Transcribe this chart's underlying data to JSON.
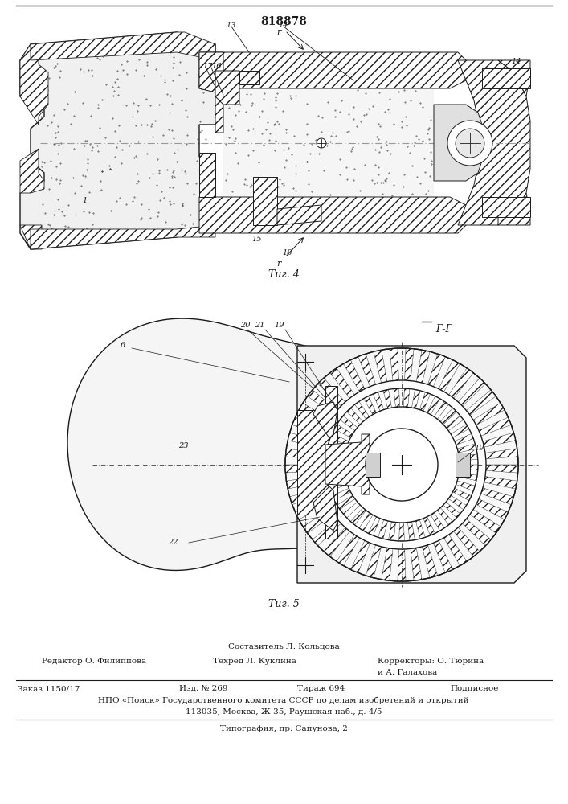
{
  "patent_number": "818878",
  "fig4_label": "Τиг. 4",
  "fig5_label": "Τиг. 5",
  "section_label": "Г-Г",
  "bg_color": "#ffffff",
  "line_color": "#1a1a1a",
  "gray_hatch": "#888888",
  "light_gray": "#cccccc",
  "mid_gray": "#aaaaaa",
  "dark_gray": "#777777",
  "footer_compiler": "Составитель Л. Кольцова",
  "footer_line1_left": "Редактор О. Филиппова",
  "footer_line1_center": "Техред Л. Куклина",
  "footer_line1_right": "Корректоры: О. Тюрина",
  "footer_line2_right": "и А. Галахова",
  "footer_order": "Заказ 1150/17",
  "footer_izd": "Изд. № 269",
  "footer_tirazh": "Тираж 694",
  "footer_podp": "Подписное",
  "footer_npo": "НПО «Поиск» Государственного комитета СССР по делам изобретений и открытий",
  "footer_addr": "113035, Москва, Ж-35, Раушская наб., д. 4/5",
  "footer_tipograf": "Типография, пр. Сапунова, 2"
}
